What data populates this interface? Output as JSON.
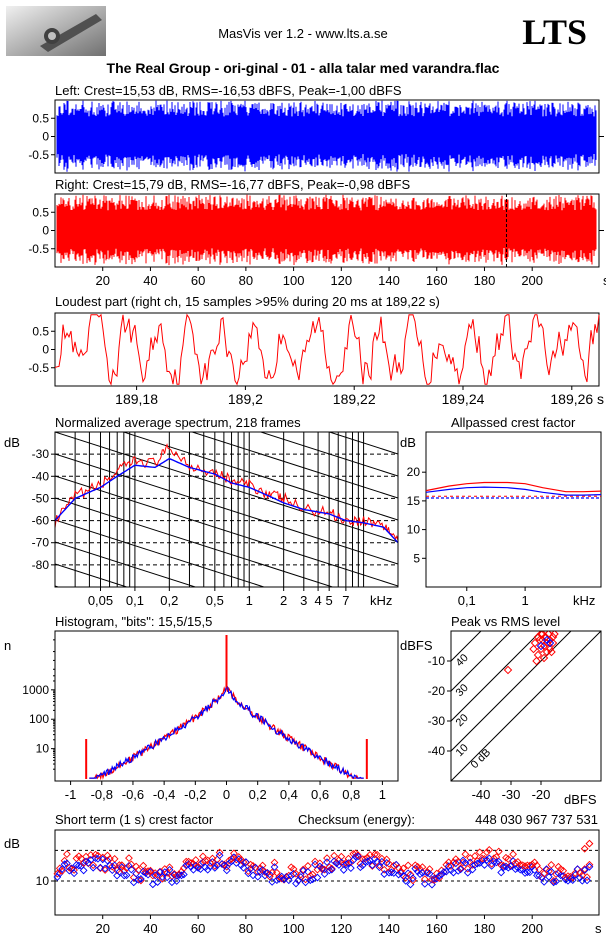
{
  "header": {
    "app_title": "MasVis ver 1.2 - www.lts.a.se",
    "logo_text": "LTS",
    "file_title": "The Real Group - ori-ginal - 01 - alla talar med varandra.flac"
  },
  "chart_data": [
    {
      "id": "left",
      "type": "waveform",
      "title": "Left: Crest=15,53 dB, RMS=-16,53 dBFS, Peak=-1,00 dBFS",
      "color": "#0000ff",
      "yticks": [
        "0.5",
        "0",
        "-0.5"
      ],
      "ylim": [
        -1,
        1
      ],
      "xlim": [
        0,
        228
      ],
      "crest_db": 15.53,
      "rms_dbfs": -16.53,
      "peak_dbfs": -1.0
    },
    {
      "id": "right",
      "type": "waveform",
      "title": "Right: Crest=15,79 dB, RMS=-16,77 dBFS, Peak=-0,98 dBFS",
      "color": "#ff0000",
      "yticks": [
        "0.5",
        "0",
        "-0.5"
      ],
      "ylim": [
        -1,
        1
      ],
      "xlim": [
        0,
        228
      ],
      "xticks": [
        "20",
        "40",
        "60",
        "80",
        "100",
        "120",
        "140",
        "160",
        "180",
        "200"
      ],
      "xunit": "s",
      "marker_s": 189.22,
      "crest_db": 15.79,
      "rms_dbfs": -16.77,
      "peak_dbfs": -0.98
    },
    {
      "id": "loudest",
      "type": "line",
      "title": "Loudest part (right ch, 15 samples >95% during 20 ms at 189,22 s)",
      "color": "#ff0000",
      "yticks": [
        "0.5",
        "0",
        "-0.5"
      ],
      "xlim": [
        189.165,
        189.265
      ],
      "xticks": [
        "189,18",
        "189,2",
        "189,22",
        "189,24",
        "189,26"
      ],
      "xunit": "s"
    },
    {
      "id": "spectrum",
      "type": "line",
      "title": "Normalized average spectrum, 218 frames",
      "ylabel": "dB",
      "yticks": [
        "-30",
        "-40",
        "-50",
        "-60",
        "-70",
        "-80"
      ],
      "ylim": [
        -90,
        -20
      ],
      "xticks": [
        "0,05",
        "0,1",
        "0,2",
        "0,5",
        "1",
        "2",
        "3",
        "4",
        "5",
        "7"
      ],
      "xunit": "kHz",
      "xscale": "log",
      "series": [
        {
          "color": "#ff0000",
          "x": [
            0.02,
            0.03,
            0.05,
            0.07,
            0.1,
            0.15,
            0.2,
            0.3,
            0.5,
            0.7,
            1,
            1.5,
            2,
            3,
            5,
            7,
            10,
            15,
            20
          ],
          "y": [
            -61,
            -49,
            -44,
            -38,
            -33,
            -34,
            -27,
            -35,
            -38,
            -42,
            -44,
            -48,
            -50,
            -55,
            -56,
            -60,
            -60,
            -62,
            -69
          ]
        },
        {
          "color": "#0000ff",
          "x": [
            0.02,
            0.03,
            0.05,
            0.07,
            0.1,
            0.15,
            0.2,
            0.3,
            0.5,
            0.7,
            1,
            1.5,
            2,
            3,
            5,
            7,
            10,
            15,
            20
          ],
          "y": [
            -60,
            -50,
            -45,
            -40,
            -35,
            -36,
            -32,
            -36,
            -39,
            -43,
            -45,
            -49,
            -52,
            -55,
            -57,
            -60,
            -61,
            -63,
            -70
          ]
        }
      ]
    },
    {
      "id": "allpass",
      "type": "line",
      "title": "Allpassed crest factor",
      "ylabel": "dB",
      "yticks": [
        "20",
        "15",
        "10",
        "5"
      ],
      "ylim": [
        0,
        27
      ],
      "xticks": [
        "0,1",
        "1"
      ],
      "xunit": "kHz",
      "xscale": "log",
      "series": [
        {
          "color": "#ff0000",
          "x": [
            0.02,
            0.05,
            0.1,
            0.2,
            0.5,
            1,
            2,
            5,
            10,
            20
          ],
          "y": [
            16.8,
            17.6,
            18.0,
            18.2,
            18.2,
            18.0,
            17.3,
            16.6,
            16.6,
            16.7
          ]
        },
        {
          "color": "#0000ff",
          "x": [
            0.02,
            0.05,
            0.1,
            0.2,
            0.5,
            1,
            2,
            5,
            10,
            20
          ],
          "y": [
            16.5,
            17.0,
            17.3,
            17.4,
            17.3,
            17.0,
            16.5,
            16.0,
            16.0,
            16.1
          ]
        }
      ],
      "reference_db": [
        15.5,
        15.8
      ]
    },
    {
      "id": "histogram",
      "type": "line",
      "title": "Histogram, \"bits\": 15,5/15,5",
      "ylabel": "n",
      "yticks": [
        "1000",
        "100",
        "10"
      ],
      "yscale": "log",
      "xticks": [
        "-1",
        "-0,8",
        "-0,6",
        "-0,4",
        "-0,2",
        "0",
        "0,2",
        "0,4",
        "0,6",
        "0,8",
        "1"
      ],
      "xlim": [
        -1.1,
        1.1
      ],
      "x": [
        -0.9,
        -0.8,
        -0.6,
        -0.4,
        -0.2,
        -0.05,
        0,
        0.05,
        0.2,
        0.4,
        0.6,
        0.8,
        0.9
      ],
      "y": [
        4,
        8,
        25,
        80,
        300,
        800,
        1200,
        800,
        300,
        80,
        25,
        8,
        4
      ]
    },
    {
      "id": "peak_vs_rms",
      "type": "scatter",
      "title": "Peak vs RMS level",
      "ylabel": "dBFS",
      "xlabel": "dBFS",
      "xticks": [
        "-40",
        "-30",
        "-20"
      ],
      "yticks": [
        "-10",
        "-20",
        "-30",
        "-40"
      ],
      "xlim": [
        -50,
        0
      ],
      "ylim": [
        -50,
        0
      ],
      "diagonal_labels": [
        "40",
        "30",
        "20",
        "10",
        "0 dB"
      ],
      "series": [
        {
          "color": "#ff0000",
          "x": [
            -31,
            -22,
            -21,
            -20.5,
            -20,
            -19.5,
            -19,
            -18.5,
            -18,
            -17.5,
            -17,
            -16.5,
            -16,
            -15.5,
            -21,
            -19,
            -17,
            -20,
            -18,
            -16,
            -22.5,
            -21.5,
            -19.5,
            -17.5
          ],
          "y": [
            -13,
            -4,
            -2,
            -3,
            -6,
            -1,
            -5,
            -2,
            -4,
            -1,
            -3,
            -7,
            -2,
            -1,
            -8,
            -9,
            -6,
            -1,
            -7,
            -4,
            -6,
            -10,
            -3,
            -1
          ]
        },
        {
          "color": "#0000ff",
          "x": [
            -20,
            -18,
            -17
          ],
          "y": [
            -5,
            -3,
            -4
          ]
        }
      ]
    },
    {
      "id": "short_term_crest",
      "type": "scatter",
      "title": "Short term (1 s) crest factor",
      "checksum_label": "Checksum (energy):",
      "checksum_value": "448 030 967 737 531",
      "ylabel": "dB",
      "yticks": [
        "10"
      ],
      "ylim": [
        0,
        25
      ],
      "xlim": [
        0,
        228
      ],
      "xticks": [
        "20",
        "40",
        "60",
        "80",
        "100",
        "120",
        "140",
        "160",
        "180",
        "200"
      ],
      "xunit": "s",
      "ref_lines_db": [
        19,
        10
      ]
    }
  ]
}
